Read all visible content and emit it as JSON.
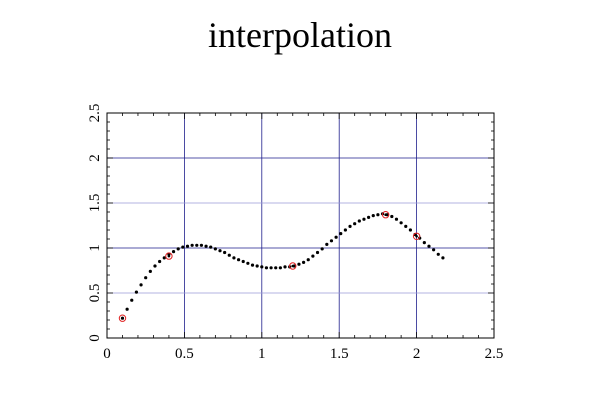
{
  "chart_data": {
    "type": "scatter",
    "title": "interpolation",
    "xlabel": "",
    "ylabel": "",
    "xlim": [
      0,
      2.5
    ],
    "ylim": [
      0,
      2.5
    ],
    "grid": true,
    "x_ticks": [
      0,
      0.5,
      1,
      1.5,
      2,
      2.5
    ],
    "x_tick_labels": [
      "0",
      "0.5",
      "1",
      "1.5",
      "2",
      "2.5"
    ],
    "y_ticks": [
      0,
      0.5,
      1,
      1.5,
      2,
      2.5
    ],
    "y_tick_labels": [
      "0",
      "0.5",
      "1",
      "1.5",
      "2",
      "2.5"
    ],
    "colors": {
      "grid_major": "#1e1e8c",
      "grid_minor": "#9a9ad8",
      "axes": "#000000",
      "interpolated": "#000000",
      "sample_marker": "#e02020"
    },
    "series": [
      {
        "values_x": [
          0.1,
          0.4,
          1.2,
          1.8,
          2.0
        ],
        "values_y": [
          0.22,
          0.91,
          0.8,
          1.37,
          1.13
        ]
      },
      {
        "values_x": [
          0.1,
          0.13,
          0.16,
          0.19,
          0.22,
          0.25,
          0.28,
          0.31,
          0.34,
          0.37,
          0.4,
          0.43,
          0.46,
          0.49,
          0.52,
          0.55,
          0.58,
          0.61,
          0.64,
          0.67,
          0.7,
          0.73,
          0.76,
          0.79,
          0.82,
          0.85,
          0.88,
          0.91,
          0.94,
          0.97,
          1.0,
          1.03,
          1.06,
          1.09,
          1.12,
          1.15,
          1.18,
          1.21,
          1.24,
          1.27,
          1.3,
          1.33,
          1.36,
          1.39,
          1.42,
          1.45,
          1.48,
          1.51,
          1.54,
          1.57,
          1.6,
          1.63,
          1.66,
          1.69,
          1.72,
          1.75,
          1.78,
          1.81,
          1.84,
          1.87,
          1.9,
          1.93,
          1.96,
          1.99,
          2.02,
          2.05,
          2.08,
          2.11,
          2.14,
          2.17
        ],
        "values_y": [
          0.22,
          0.32,
          0.42,
          0.51,
          0.59,
          0.67,
          0.74,
          0.8,
          0.85,
          0.89,
          0.93,
          0.96,
          0.99,
          1.01,
          1.02,
          1.03,
          1.03,
          1.03,
          1.02,
          1.01,
          0.99,
          0.97,
          0.95,
          0.92,
          0.89,
          0.87,
          0.85,
          0.83,
          0.81,
          0.8,
          0.79,
          0.78,
          0.78,
          0.78,
          0.78,
          0.79,
          0.79,
          0.8,
          0.82,
          0.84,
          0.87,
          0.91,
          0.95,
          0.99,
          1.04,
          1.08,
          1.12,
          1.16,
          1.2,
          1.24,
          1.27,
          1.3,
          1.32,
          1.34,
          1.36,
          1.37,
          1.38,
          1.37,
          1.35,
          1.32,
          1.28,
          1.24,
          1.2,
          1.15,
          1.11,
          1.06,
          1.02,
          0.98,
          0.93,
          0.89
        ]
      }
    ]
  }
}
